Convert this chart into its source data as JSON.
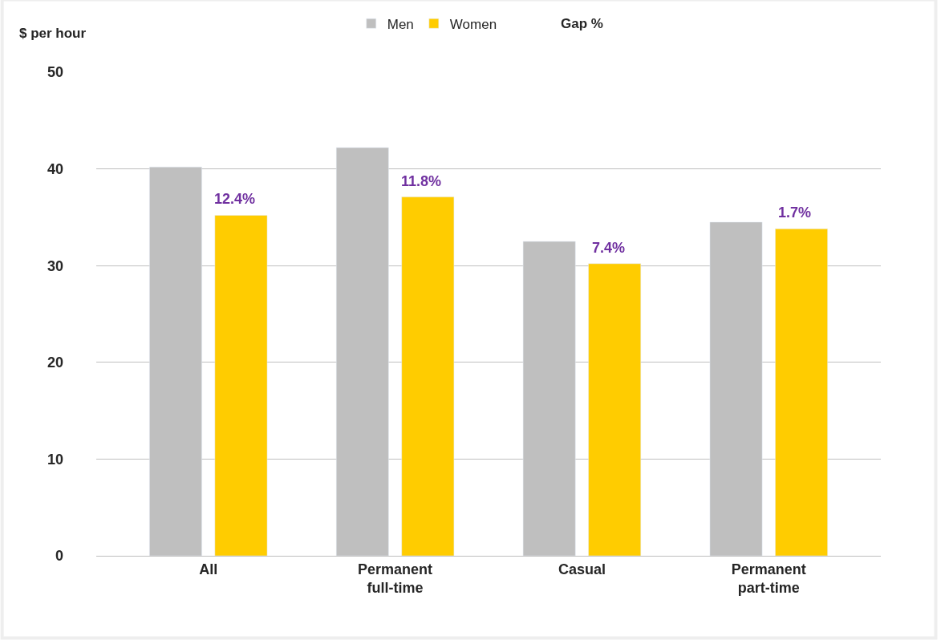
{
  "chart_data": {
    "type": "bar",
    "ylabel": "$ per hour",
    "categories": [
      "All",
      "Permanent\nfull-time",
      "Casual",
      "Permanent\npart-time"
    ],
    "series": [
      {
        "name": "Men",
        "color": "#bfbfbf",
        "values": [
          40.2,
          42.2,
          32.5,
          34.5
        ]
      },
      {
        "name": "Women",
        "color": "#ffcc00",
        "values": [
          35.2,
          37.1,
          30.2,
          33.8
        ]
      }
    ],
    "annotations": [
      "Gap %",
      "12.4%",
      "11.8%",
      "7.4%",
      "1.7%"
    ],
    "ylim": [
      0,
      50
    ],
    "yticks": [
      0,
      10,
      20,
      30,
      40,
      50
    ],
    "grid": "y",
    "legend": "top"
  }
}
